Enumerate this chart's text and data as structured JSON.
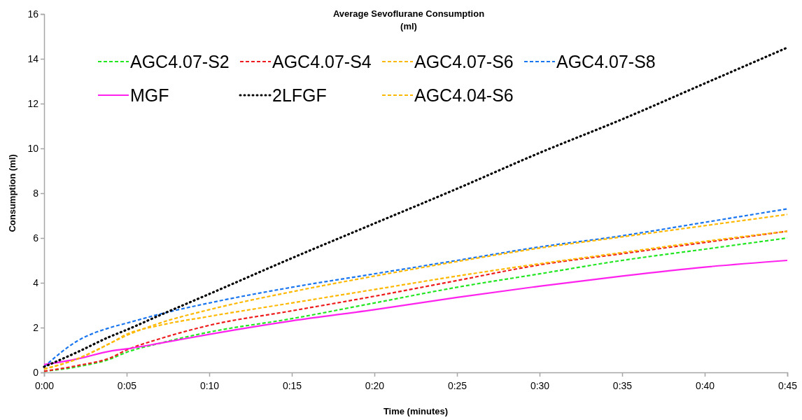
{
  "chart_data": {
    "type": "line",
    "title": "Average Sevoflurane Consumption (ml)",
    "xlabel": "Time (minutes)",
    "ylabel": "Consumption (ml)",
    "x": [
      0,
      0.0333333,
      0.0666667,
      0.0833333,
      0.1166667,
      0.1666667,
      0.25,
      0.3333333,
      0.4166667,
      0.5,
      0.5833333,
      0.6666667,
      0.75
    ],
    "xlim": [
      0,
      0.75
    ],
    "xticks": [
      {
        "value": 0,
        "label": "0:00"
      },
      {
        "value": 0.0833333,
        "label": "0:05"
      },
      {
        "value": 0.1666667,
        "label": "0:10"
      },
      {
        "value": 0.25,
        "label": "0:15"
      },
      {
        "value": 0.3333333,
        "label": "0:20"
      },
      {
        "value": 0.4166667,
        "label": "0:25"
      },
      {
        "value": 0.5,
        "label": "0:30"
      },
      {
        "value": 0.5833333,
        "label": "0:35"
      },
      {
        "value": 0.6666667,
        "label": "0:40"
      },
      {
        "value": 0.75,
        "label": "0:45"
      }
    ],
    "ylim": [
      0,
      16
    ],
    "yticks": [
      0,
      2,
      4,
      6,
      8,
      10,
      12,
      14,
      16
    ],
    "grid": false,
    "legend": "top left",
    "marker": "none",
    "series": [
      {
        "name": "AGC4.07-S2",
        "color": "#22e622",
        "line_style": "dashed",
        "values": [
          0.05,
          0.25,
          0.6,
          0.9,
          1.3,
          1.8,
          2.4,
          3.1,
          3.8,
          4.4,
          5.0,
          5.5,
          6.0
        ]
      },
      {
        "name": "AGC4.07-S4",
        "color": "#ee1c1c",
        "line_style": "dashed",
        "values": [
          0.05,
          0.3,
          0.65,
          1.0,
          1.5,
          2.1,
          2.75,
          3.4,
          4.1,
          4.8,
          5.3,
          5.8,
          6.3
        ]
      },
      {
        "name": "AGC4.07-S6",
        "color": "#ffb800",
        "line_style": "dashed",
        "values": [
          0.15,
          0.6,
          1.3,
          1.7,
          2.1,
          2.5,
          3.1,
          3.7,
          4.3,
          4.85,
          5.35,
          5.85,
          6.3
        ]
      },
      {
        "name": "AGC4.07-S8",
        "color": "#1a75f0",
        "line_style": "dashed",
        "values": [
          0.25,
          1.4,
          2.0,
          2.2,
          2.6,
          3.1,
          3.8,
          4.4,
          5.0,
          5.6,
          6.1,
          6.7,
          7.3
        ]
      },
      {
        "name": "MGF",
        "color": "#ff22ee",
        "line_style": "solid",
        "values": [
          0.35,
          0.6,
          0.95,
          1.05,
          1.3,
          1.7,
          2.3,
          2.8,
          3.35,
          3.85,
          4.3,
          4.7,
          5.0
        ]
      },
      {
        "name": "2LFGF",
        "color": "#000000",
        "line_style": "dotted",
        "values": [
          0.25,
          0.9,
          1.6,
          1.9,
          2.55,
          3.5,
          5.1,
          6.65,
          8.2,
          9.8,
          11.3,
          12.9,
          14.5
        ]
      },
      {
        "name": "AGC4.04-S6",
        "color": "#ffb800",
        "line_style": "dashed",
        "values": [
          0.15,
          0.6,
          1.3,
          1.65,
          2.2,
          2.8,
          3.6,
          4.3,
          4.95,
          5.55,
          6.05,
          6.55,
          7.05
        ]
      }
    ]
  }
}
